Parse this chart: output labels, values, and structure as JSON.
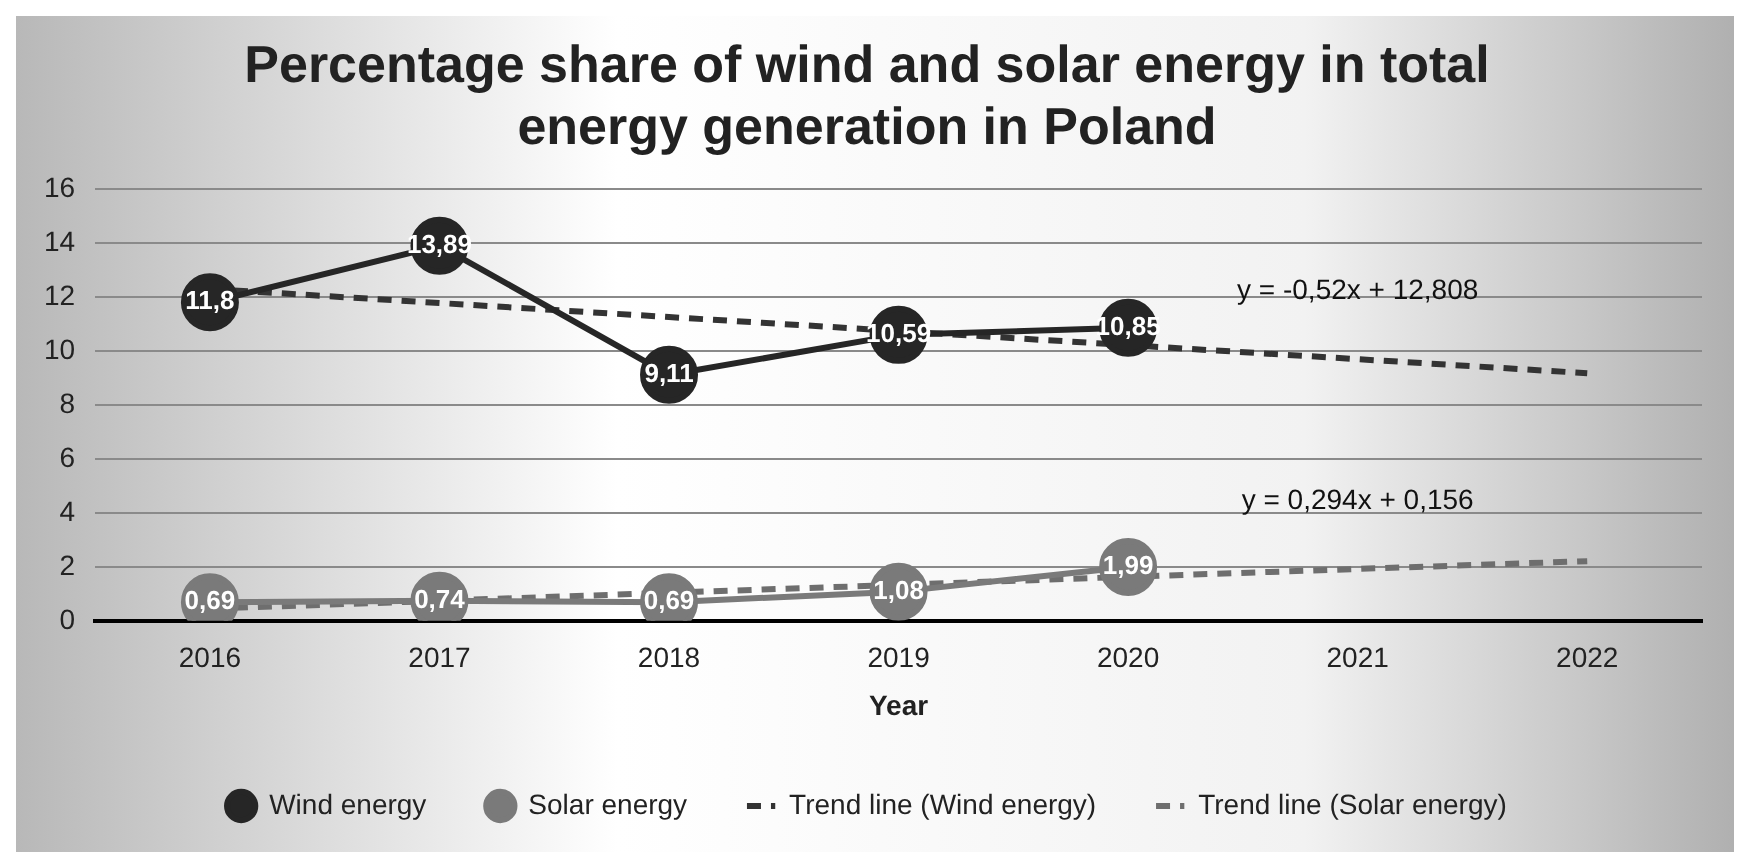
{
  "chart_data": {
    "type": "line",
    "title": "Percentage share of wind and solar energy in total energy generation in Poland",
    "xlabel": "Year",
    "categories": [
      "2016",
      "2017",
      "2018",
      "2019",
      "2020",
      "2021",
      "2022"
    ],
    "series": [
      {
        "name": "Wind energy",
        "color": "#262626",
        "values": [
          11.8,
          13.89,
          9.11,
          10.59,
          10.85,
          null,
          null
        ],
        "value_labels": [
          "11,8",
          "13,89",
          "9,11",
          "10,59",
          "10,85",
          null,
          null
        ],
        "marker": "circle",
        "line_style": "solid"
      },
      {
        "name": "Solar energy",
        "color": "#7a7a7a",
        "values": [
          0.69,
          0.74,
          0.69,
          1.08,
          1.99,
          null,
          null
        ],
        "value_labels": [
          "0,69",
          "0,74",
          "0,69",
          "1,08",
          "1,99",
          null,
          null
        ],
        "marker": "circle",
        "line_style": "solid"
      },
      {
        "name": "Trend line (Wind energy)",
        "color": "#333333",
        "values": [
          12.29,
          11.77,
          11.25,
          10.73,
          10.21,
          9.69,
          9.17
        ],
        "marker": "none",
        "line_style": "dashed"
      },
      {
        "name": "Trend line (Solar energy)",
        "color": "#6e6e6e",
        "values": [
          0.45,
          0.74,
          1.04,
          1.33,
          1.63,
          1.92,
          2.21
        ],
        "marker": "none",
        "line_style": "dashed"
      }
    ],
    "annotations": [
      {
        "text": "y = -0,52x + 12,808",
        "x": "2021",
        "y": 9.69
      },
      {
        "text": "y = 0,294x + 0,156",
        "x": "2021",
        "y": 1.92
      }
    ],
    "ylim": [
      0,
      16
    ],
    "yticks": [
      0,
      2,
      4,
      6,
      8,
      10,
      12,
      14,
      16
    ],
    "grid": "y",
    "legend": "bottom"
  }
}
